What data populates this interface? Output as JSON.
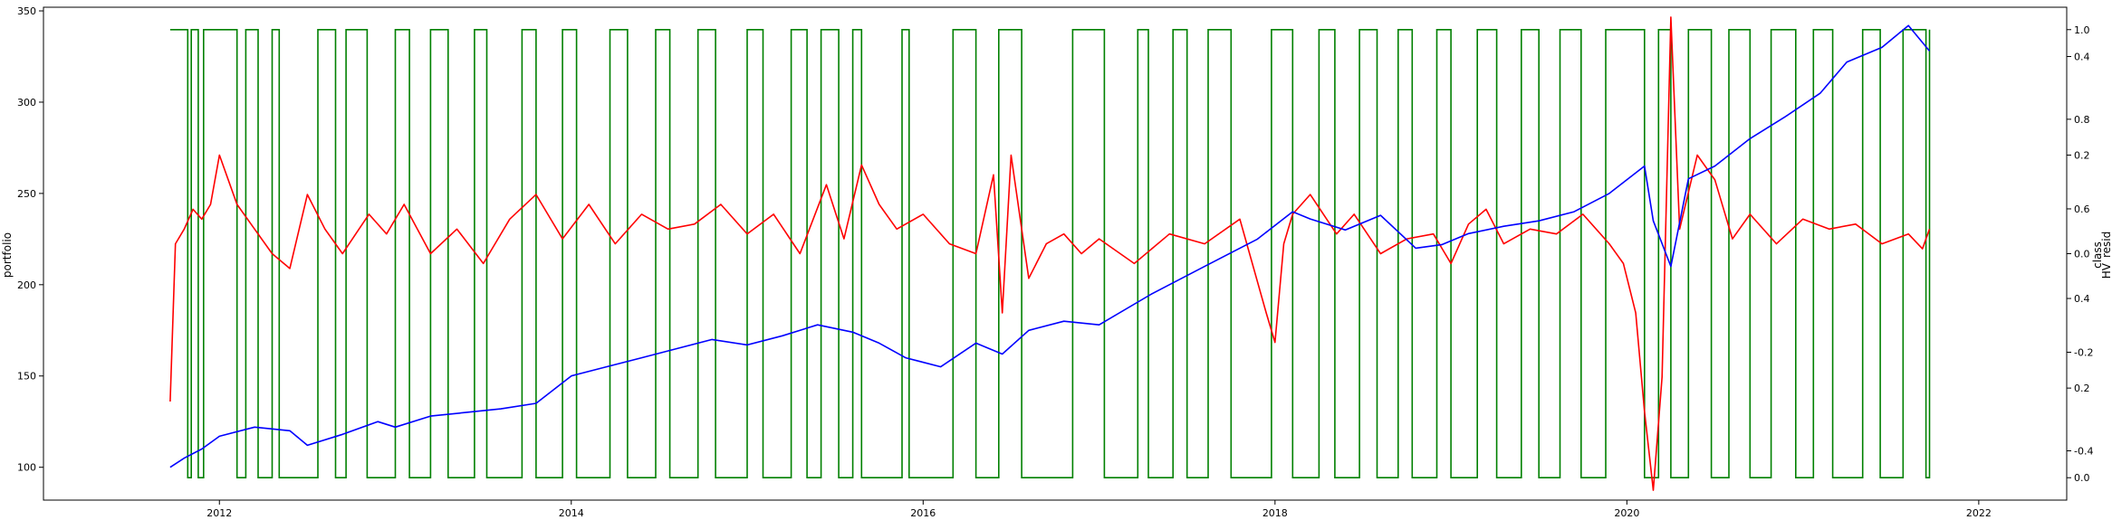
{
  "chart_data": {
    "type": "line",
    "x_range": [
      2011.0,
      2022.5
    ],
    "left_axis": {
      "label": "portfolio",
      "ylim": [
        82,
        352
      ],
      "ticks": [
        100,
        150,
        200,
        250,
        300,
        350
      ]
    },
    "right_axes": [
      {
        "label": "class",
        "ylim": [
          -0.05,
          1.05
        ],
        "ticks": [
          0.0,
          0.2,
          0.4,
          0.6,
          0.8,
          1.0
        ]
      },
      {
        "label": "HV_resid",
        "ylim": [
          -0.5,
          0.5
        ],
        "ticks": [
          -0.4,
          -0.2,
          0.0,
          0.2,
          0.4
        ]
      }
    ],
    "x_ticks": [
      "2012",
      "2014",
      "2016",
      "2018",
      "2020",
      "2022"
    ],
    "x_tick_values": [
      2012,
      2014,
      2016,
      2018,
      2020,
      2022
    ],
    "series": [
      {
        "axis": "left",
        "color": "#0000ff",
        "x": [
          2011.72,
          2011.8,
          2011.9,
          2012.0,
          2012.2,
          2012.4,
          2012.5,
          2012.7,
          2012.9,
          2013.0,
          2013.2,
          2013.4,
          2013.6,
          2013.8,
          2014.0,
          2014.2,
          2014.4,
          2014.6,
          2014.8,
          2015.0,
          2015.2,
          2015.4,
          2015.6,
          2015.75,
          2015.9,
          2016.1,
          2016.3,
          2016.45,
          2016.6,
          2016.8,
          2017.0,
          2017.3,
          2017.6,
          2017.9,
          2018.1,
          2018.2,
          2018.4,
          2018.6,
          2018.8,
          2018.95,
          2019.1,
          2019.3,
          2019.5,
          2019.7,
          2019.9,
          2020.1,
          2020.15,
          2020.25,
          2020.35,
          2020.5,
          2020.7,
          2020.9,
          2021.1,
          2021.25,
          2021.45,
          2021.6,
          2021.72
        ],
        "values": [
          100,
          105,
          110,
          117,
          122,
          120,
          112,
          118,
          125,
          122,
          128,
          130,
          132,
          135,
          150,
          155,
          160,
          165,
          170,
          167,
          172,
          178,
          174,
          168,
          160,
          155,
          168,
          162,
          175,
          180,
          178,
          195,
          210,
          225,
          240,
          236,
          230,
          238,
          220,
          222,
          228,
          232,
          235,
          240,
          250,
          265,
          235,
          210,
          258,
          265,
          280,
          292,
          305,
          322,
          330,
          342,
          328
        ]
      },
      {
        "axis": "HV_resid",
        "color": "#ff0000",
        "x": [
          2011.72,
          2011.75,
          2011.8,
          2011.85,
          2011.9,
          2011.95,
          2012.0,
          2012.1,
          2012.2,
          2012.3,
          2012.4,
          2012.5,
          2012.6,
          2012.7,
          2012.85,
          2012.95,
          2013.05,
          2013.2,
          2013.35,
          2013.5,
          2013.65,
          2013.8,
          2013.95,
          2014.1,
          2014.25,
          2014.4,
          2014.55,
          2014.7,
          2014.85,
          2015.0,
          2015.15,
          2015.3,
          2015.45,
          2015.55,
          2015.65,
          2015.75,
          2015.85,
          2016.0,
          2016.15,
          2016.3,
          2016.4,
          2016.45,
          2016.5,
          2016.6,
          2016.7,
          2016.8,
          2016.9,
          2017.0,
          2017.2,
          2017.4,
          2017.6,
          2017.8,
          2017.95,
          2018.0,
          2018.05,
          2018.1,
          2018.2,
          2018.35,
          2018.45,
          2018.6,
          2018.75,
          2018.9,
          2019.0,
          2019.1,
          2019.2,
          2019.3,
          2019.45,
          2019.6,
          2019.75,
          2019.9,
          2019.98,
          2020.05,
          2020.1,
          2020.15,
          2020.2,
          2020.25,
          2020.3,
          2020.4,
          2020.5,
          2020.6,
          2020.7,
          2020.85,
          2021.0,
          2021.15,
          2021.3,
          2021.45,
          2021.6,
          2021.68,
          2021.72
        ],
        "values": [
          -0.3,
          0.02,
          0.05,
          0.09,
          0.07,
          0.1,
          0.2,
          0.1,
          0.05,
          0.0,
          -0.03,
          0.12,
          0.05,
          0.0,
          0.08,
          0.04,
          0.1,
          0.0,
          0.05,
          -0.02,
          0.07,
          0.12,
          0.03,
          0.1,
          0.02,
          0.08,
          0.05,
          0.06,
          0.1,
          0.04,
          0.08,
          0.0,
          0.14,
          0.03,
          0.18,
          0.1,
          0.05,
          0.08,
          0.02,
          0.0,
          0.16,
          -0.12,
          0.2,
          -0.05,
          0.02,
          0.04,
          0.0,
          0.03,
          -0.02,
          0.04,
          0.02,
          0.07,
          -0.12,
          -0.18,
          0.02,
          0.08,
          0.12,
          0.04,
          0.08,
          0.0,
          0.03,
          0.04,
          -0.02,
          0.06,
          0.09,
          0.02,
          0.05,
          0.04,
          0.08,
          0.02,
          -0.02,
          -0.12,
          -0.32,
          -0.48,
          -0.25,
          0.48,
          0.05,
          0.2,
          0.15,
          0.03,
          0.08,
          0.02,
          0.07,
          0.05,
          0.06,
          0.02,
          0.04,
          0.01,
          0.05
        ]
      },
      {
        "axis": "class",
        "color": "#008000",
        "x_switch": [
          2011.72,
          2011.82,
          2011.84,
          2011.88,
          2011.91,
          2012.1,
          2012.15,
          2012.22,
          2012.3,
          2012.34,
          2012.56,
          2012.66,
          2012.72,
          2012.84,
          2013.0,
          2013.08,
          2013.2,
          2013.3,
          2013.45,
          2013.52,
          2013.72,
          2013.8,
          2013.95,
          2014.03,
          2014.22,
          2014.32,
          2014.48,
          2014.56,
          2014.72,
          2014.82,
          2015.0,
          2015.09,
          2015.25,
          2015.34,
          2015.42,
          2015.52,
          2015.6,
          2015.65,
          2015.88,
          2015.92,
          2016.17,
          2016.3,
          2016.43,
          2016.56,
          2016.85,
          2017.03,
          2017.22,
          2017.28,
          2017.42,
          2017.5,
          2017.62,
          2017.75,
          2017.98,
          2018.1,
          2018.25,
          2018.34,
          2018.48,
          2018.58,
          2018.7,
          2018.78,
          2018.92,
          2019.0,
          2019.15,
          2019.26,
          2019.4,
          2019.5,
          2019.62,
          2019.74,
          2019.88,
          2020.1,
          2020.18,
          2020.25,
          2020.35,
          2020.48,
          2020.58,
          2020.7,
          2020.82,
          2020.96,
          2021.06,
          2021.17,
          2021.34,
          2021.44,
          2021.57,
          2021.7,
          2021.72
        ],
        "start_value": 1
      }
    ]
  }
}
